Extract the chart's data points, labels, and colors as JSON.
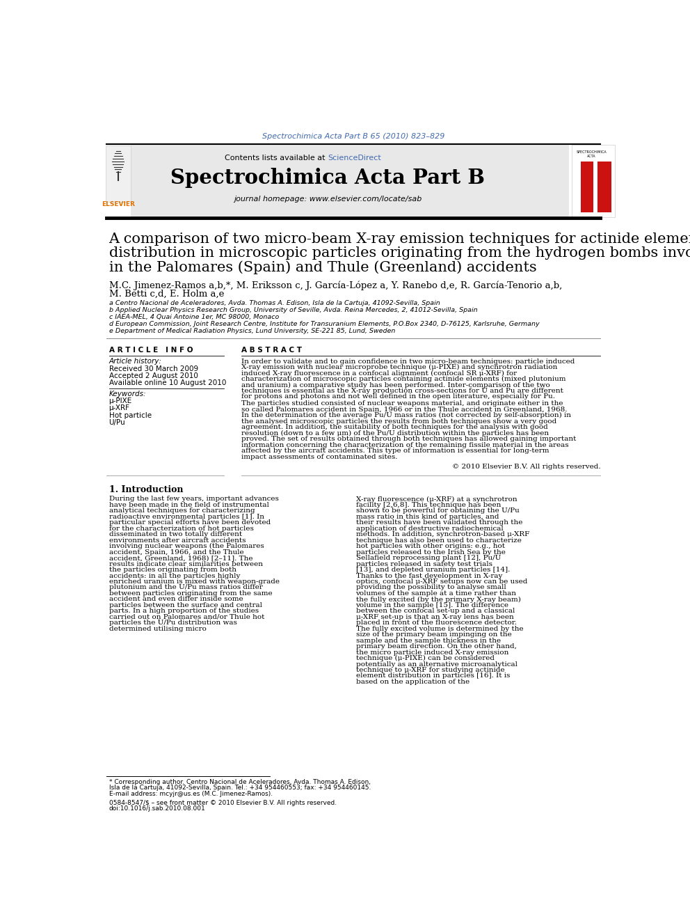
{
  "journal_ref": "Spectrochimica Acta Part B 65 (2010) 823–829",
  "journal_ref_color": "#4169B0",
  "sciencedirect_color": "#4169B0",
  "journal_name": "Spectrochimica Acta Part B",
  "journal_homepage": "journal homepage: www.elsevier.com/locate/sab",
  "paper_title_line1": "A comparison of two micro-beam X-ray emission techniques for actinide elemental",
  "paper_title_line2": "distribution in microscopic particles originating from the hydrogen bombs involved",
  "paper_title_line3": "in the Palomares (Spain) and Thule (Greenland) accidents",
  "authors_line1": "M.C. Jimenez-Ramos a,b,*, M. Eriksson c, J. García-López a, Y. Ranebo d,e, R. García-Tenorio a,b,",
  "authors_line2": "M. Betti c,d, E. Holm a,e",
  "affiliations": [
    "a Centro Nacional de Aceleradores, Avda. Thomas A. Edison, Isla de la Cartuja, 41092-Sevilla, Spain",
    "b Applied Nuclear Physics Research Group, University of Seville, Avda. Reina Mercedes, 2, 41012-Sevilla, Spain",
    "c IAEA-MEL, 4 Quai Antoine 1er, MC 98000, Monaco",
    "d European Commission, Joint Research Centre, Institute for Transuranium Elements, P.O.Box 2340, D-76125, Karlsruhe, Germany",
    "e Department of Medical Radiation Physics, Lund University, SE-221 85, Lund, Sweden"
  ],
  "article_info_title": "A R T I C L E   I N F O",
  "article_history_label": "Article history:",
  "received": "Received 30 March 2009",
  "accepted": "Accepted 2 August 2010",
  "available": "Available online 10 August 2010",
  "keywords_label": "Keywords:",
  "keywords": [
    "μ-PIXE",
    "μ-XRF",
    "Hot particle",
    "U/Pu"
  ],
  "abstract_title": "A B S T R A C T",
  "abstract_para1": "In order to validate and to gain confidence in two micro-beam techniques: particle induced X-ray emission with nuclear microprobe technique (μ-PIXE) and synchrotron radiation induced X-ray fluorescence in a confocal alignment (confocal SR μ-XRF) for characterization of microscopic particles containing actinide elements (mixed plutonium and uranium) a comparative study has been performed. Inter-comparison of the two techniques is essential as the X-ray production cross-sections for U and Pu are different for protons and photons and not well defined in the open literature, especially for Pu.",
  "abstract_para2": "The particles studied consisted of nuclear weapons material, and originate either in the so called Palomares accident in Spain, 1966 or in the Thule accident in Greenland, 1968. In the determination of the average Pu/U mass ratios (not corrected by self-absorption) in the analysed microscopic particles the results from both techniques show a very good agreement. In addition, the suitability of both techniques for the analysis with good resolution (down to a few μm) of the Pu/U distribution within the particles has been proved. The set of results obtained through both techniques has allowed gaining important information concerning the characterization of the remaining fissile material in the areas affected by the aircraft accidents. This type of information is essential for long-term impact assessments of contaminated sites.",
  "copyright": "© 2010 Elsevier B.V. All rights reserved.",
  "intro_title": "1. Introduction",
  "intro_col1": "During the last few years, important advances have been made in the field of instrumental analytical techniques for characterizing radioactive environmental particles [1]. In particular special efforts have been devoted for the characterization of hot particles disseminated in two totally different environments after aircraft accidents involving nuclear weapons (the Palomares accident, Spain, 1966, and the Thule accident, Greenland, 1968) [2–11]. The results indicate clear similarities between the particles originating from both accidents: in all the particles highly enriched uranium is mixed with weapon-grade plutonium and the U/Pu mass ratios differ between particles originating from the same accident and even differ inside some particles between the surface and central parts.\n    In a high proportion of the studies carried out on Palomares and/or Thule hot particles the U/Pu distribution was determined utilising micro",
  "intro_col2": "X-ray fluorescence (μ-XRF) at a synchrotron facility [2,6,8]. This technique has been shown to be powerful for obtaining the U/Pu mass ratio in this kind of particles, and their results have been validated through the application of destructive radiochemical methods. In addition, synchrotron-based μ-XRF technique has also been used to characterize hot particles with other origins: e.g., hot particles released to the Irish Sea by the Sellafield reprocessing plant [12], Pu/U particles released in safety test trials [13], and depleted uranium particles [14]. Thanks to the fast development in X-ray optics, confocal μ-XRF setups now can be used providing the possibility to analyse small volumes of the sample at a time rather than the fully excited (by the primary X-ray beam) volume in the sample [15]. The difference between the confocal set-up and a classical μ-XRF set-up is that an X-ray lens has been placed in front of the fluorescence detector. The fully excited volume is determined by the size of the primary beam impinging on the sample and the sample thickness in the primary beam direction.\n    On the other hand, the micro particle induced X-ray emission technique (μ-PIXE) can be considered potentially as an alternative microanalytical technique to μ-XRF for studying actinide element distribution in particles [16]. It is based on the application of the",
  "footnote_star": "* Corresponding author. Centro Nacional de Aceleradores, Avda. Thomas A. Edison,",
  "footnote_star2": "Isla de la Cartuja, 41092-Sevilla, Spain. Tel.: +34 954460553; fax: +34 954460145.",
  "footnote_email": "E-mail address: mcyjr@us.es (M.C. Jimenez-Ramos).",
  "footnote_issn": "0584-8547/$ – see front matter © 2010 Elsevier B.V. All rights reserved.",
  "footnote_doi": "doi:10.1016/j.sab.2010.08.001",
  "bg_color": "#ffffff",
  "header_bg": "#e8e8e8",
  "elsevier_orange": "#e07000"
}
